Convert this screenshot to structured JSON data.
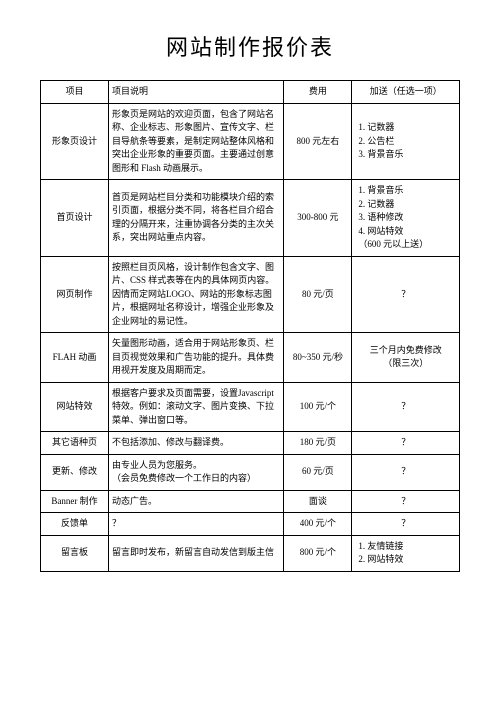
{
  "title": "网站制作报价表",
  "headers": {
    "project": "项目",
    "description": "项目说明",
    "fee": "费用",
    "bonus": "加送（任选一项）"
  },
  "rows": [
    {
      "project": "形象页设计",
      "description": "形象页是网站的欢迎页面，包含了网站名称、企业标志、形象图片、宣传文字、栏目导航条等要素，是制定网站整体风格和突出企业形象的重要页面。主要通过创意图形和 Flash 动画展示。",
      "fee": "800 元左右",
      "bonus": "1. 记数器\n2. 公告栏\n3. 背景音乐"
    },
    {
      "project": "首页设计",
      "description": "首页是网站栏目分类和功能模块介绍的索引页面，根据分类不同，将各栏目介绍合理的分隔开来，注重协调各分类的主次关系，突出网站重点内容。",
      "fee": "300-800 元",
      "bonus": "1. 背景音乐\n2. 记数器\n3. 语种修改\n4. 网站特效\n（600 元以上送）"
    },
    {
      "project": "网页制作",
      "description": "按照栏目页风格，设计制作包含文字、图片、CSS 样式表等在内的具体网页内容。因情而定网站LOGO、网站的形象标志图片，根据网址名称设计，增强企业形象及企业网址的易记性。",
      "fee": "80 元/页",
      "bonus": "？"
    },
    {
      "project": "FLAH 动画",
      "description": "矢量图形动画，适合用于网站形象页、栏目页视觉效果和广告功能的提升。具体费用视开发度及周期而定。",
      "fee": "80~350 元/秒",
      "bonus": "三个月内免费修改\n（限三次）"
    },
    {
      "project": "网站特效",
      "description": "根据客户要求及页面需要，设置Javascript 特效。例如：滚动文字、图片变换、下拉菜单、弹出窗口等。",
      "fee": "100 元/个",
      "bonus": "？"
    },
    {
      "project": "其它语种页",
      "description": "不包括添加、修改与翻译费。",
      "fee": "180 元/页",
      "bonus": "？"
    },
    {
      "project": "更新、修改",
      "description": "由专业人员为您服务。\n（会员免费修改一个工作日的内容）",
      "fee": "60 元/页",
      "bonus": "？"
    },
    {
      "project": "Banner 制作",
      "description": "动态广告。",
      "fee": "面谈",
      "bonus": "？"
    },
    {
      "project": "反馈单",
      "description": "？",
      "fee": "400 元/个",
      "bonus": "？"
    },
    {
      "project": "留言板",
      "description": "留言即时发布，新留言自动发信到版主信",
      "fee": "800 元/个",
      "bonus": "1. 友情链接\n2. 网站特效"
    }
  ]
}
